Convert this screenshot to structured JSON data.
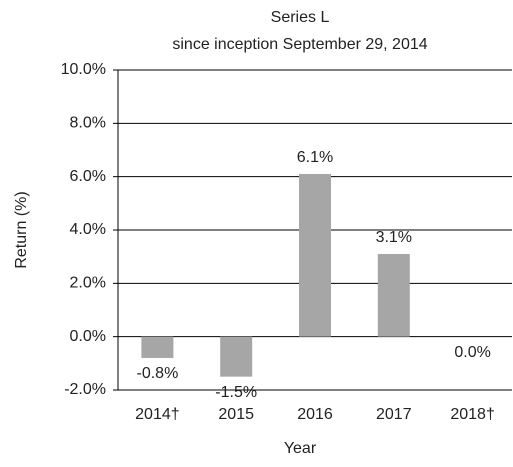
{
  "chart_data": {
    "type": "bar",
    "title": "Series L",
    "subtitle": "since inception September 29, 2014",
    "x_label": "Year",
    "y_label": "Return (%)",
    "categories": [
      "2014†",
      "2015",
      "2016",
      "2017",
      "2018†"
    ],
    "values": [
      -0.8,
      -1.5,
      6.1,
      3.1,
      0.0
    ],
    "value_labels": [
      "-0.8%",
      "-1.5%",
      "6.1%",
      "3.1%",
      "0.0%"
    ],
    "color": "#a6a6a6",
    "ylim": [
      -2,
      10
    ],
    "yticks": [
      {
        "value": -2,
        "label": "-2.0%"
      },
      {
        "value": 0,
        "label": "0.0%"
      },
      {
        "value": 2,
        "label": "2.0%"
      },
      {
        "value": 4,
        "label": "4.0%"
      },
      {
        "value": 6,
        "label": "6.0%"
      },
      {
        "value": 8,
        "label": "8.0%"
      },
      {
        "value": 10,
        "label": "10.0%"
      }
    ],
    "grid": true
  }
}
